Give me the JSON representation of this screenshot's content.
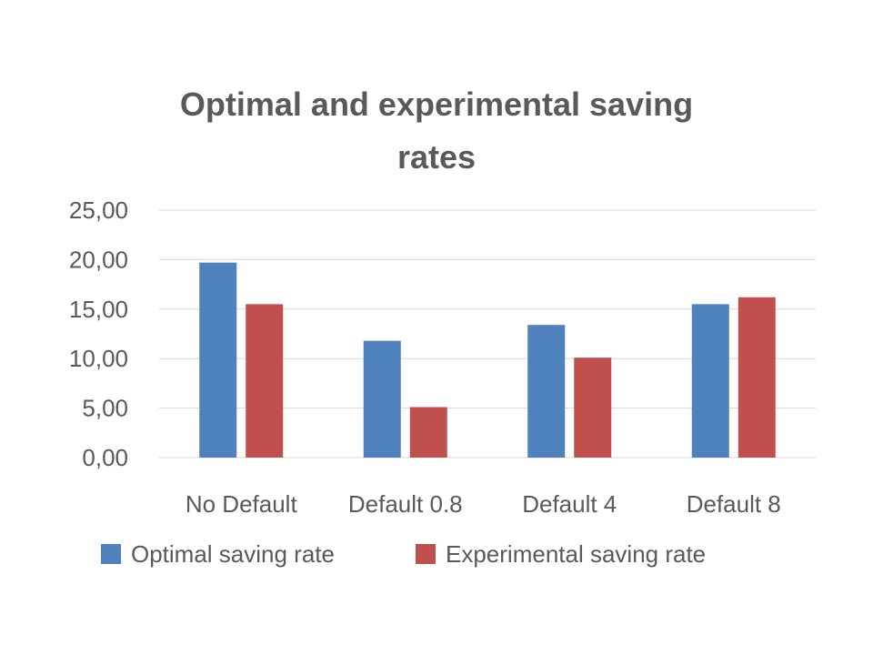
{
  "chart_data": {
    "type": "bar",
    "title_lines": [
      "Optimal and experimental saving",
      "rates"
    ],
    "categories": [
      "No Default",
      "Default 0.8",
      "Default 4",
      "Default 8"
    ],
    "series": [
      {
        "name": "Optimal saving rate",
        "values": [
          19.7,
          11.8,
          13.4,
          15.5
        ],
        "color": "#4f81bd"
      },
      {
        "name": "Experimental saving rate",
        "values": [
          15.5,
          5.1,
          10.1,
          16.2
        ],
        "color": "#c0504d"
      }
    ],
    "ylim": [
      0,
      25
    ],
    "yticks": [
      "0,00",
      "5,00",
      "10,00",
      "15,00",
      "20,00",
      "25,00"
    ],
    "grid": true,
    "legend_position": "bottom"
  }
}
